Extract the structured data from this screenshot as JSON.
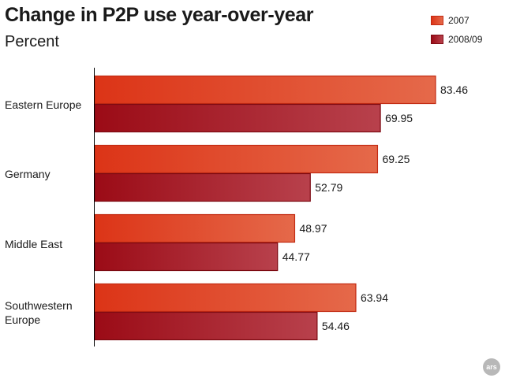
{
  "chart_data": {
    "type": "bar",
    "orientation": "horizontal",
    "title": "Change in P2P use year-over-year",
    "subtitle": "Percent",
    "categories": [
      [
        "Eastern Europe"
      ],
      [
        "Germany"
      ],
      [
        "Middle East"
      ],
      [
        "Southwestern",
        "Europe"
      ]
    ],
    "series": [
      {
        "name": "2007",
        "values": [
          83.46,
          69.25,
          48.97,
          63.94
        ]
      },
      {
        "name": "2008/09",
        "values": [
          69.95,
          52.79,
          44.77,
          54.46
        ]
      }
    ],
    "xlim": [
      0,
      83.46
    ],
    "legend_position": "top-right",
    "grid": false
  },
  "colors": {
    "series_2007_start": "#dc3417",
    "series_2007_end": "#e5694a",
    "series_2007_border": "#c22a12",
    "series_2009_start": "#9b0b16",
    "series_2009_end": "#b8414c",
    "series_2009_border": "#7d0a12"
  },
  "logo": {
    "text": "ars"
  }
}
